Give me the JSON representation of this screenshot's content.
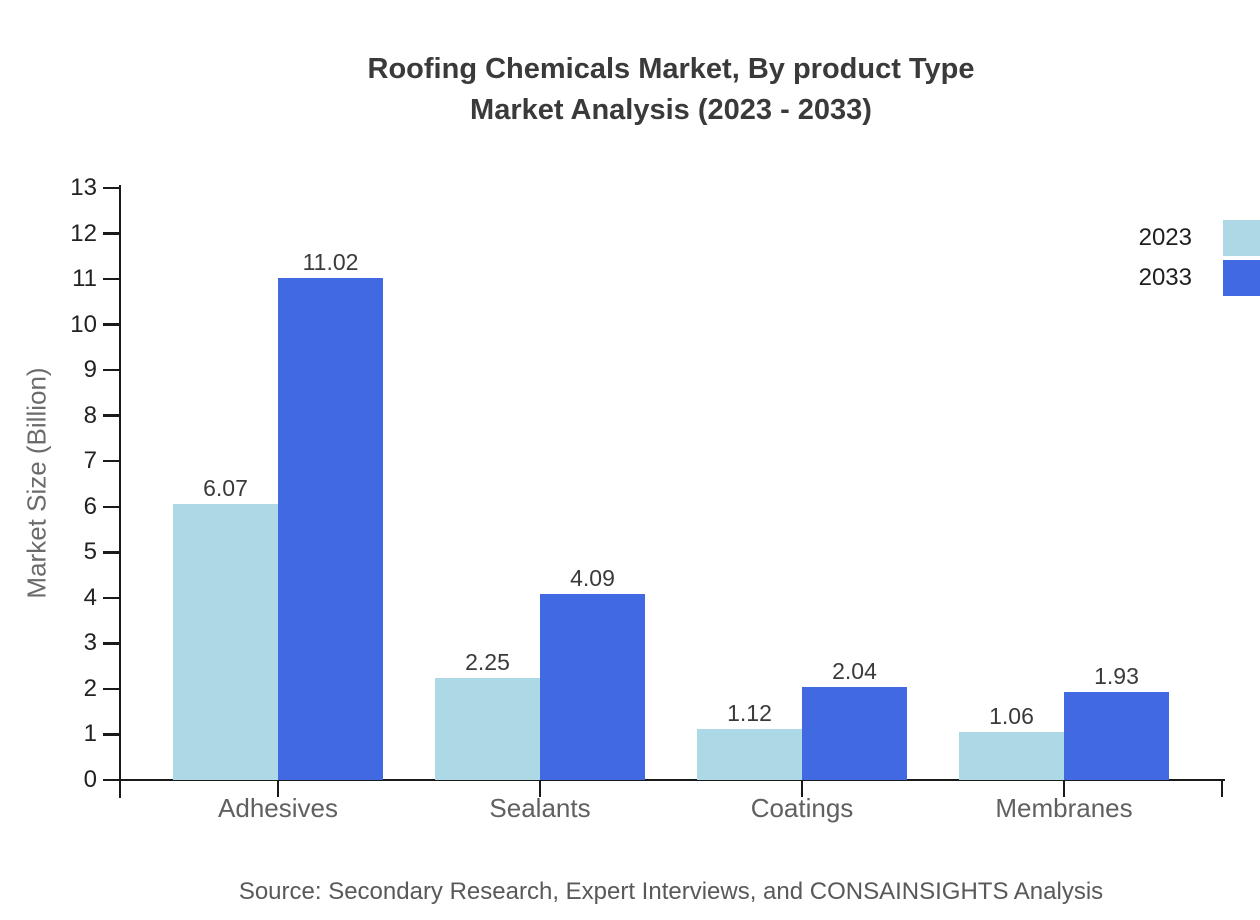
{
  "title": {
    "line1": "Roofing Chemicals Market, By product Type",
    "line2": "Market Analysis (2023 - 2033)"
  },
  "source_note": "Source: Secondary Research, Expert Interviews, and CONSAINSIGHTS Analysis",
  "chart_data": {
    "type": "bar",
    "title": "Roofing Chemicals Market, By product Type Market Analysis (2023 - 2033)",
    "categories": [
      "Adhesives",
      "Sealants",
      "Coatings",
      "Membranes"
    ],
    "series": [
      {
        "name": "2023",
        "color": "#ADD8E6",
        "values": [
          6.07,
          2.25,
          1.12,
          1.06
        ]
      },
      {
        "name": "2033",
        "color": "#4169E1",
        "values": [
          11.02,
          4.09,
          2.04,
          1.93
        ]
      }
    ],
    "value_labels": [
      [
        "6.07",
        "2.25",
        "1.12",
        "1.06"
      ],
      [
        "11.02",
        "4.09",
        "2.04",
        "1.93"
      ]
    ],
    "xlabel": "",
    "ylabel": "Market Size (Billion)",
    "ylim": [
      0,
      13
    ],
    "ytick_step": 1,
    "yticks": [
      0,
      1,
      2,
      3,
      4,
      5,
      6,
      7,
      8,
      9,
      10,
      11,
      12,
      13
    ],
    "grid": false,
    "legend_position": "top-right",
    "colors": {
      "series_2023": "#ADD8E6",
      "series_2033": "#4169E1",
      "axis": "#1a1a1a"
    }
  }
}
